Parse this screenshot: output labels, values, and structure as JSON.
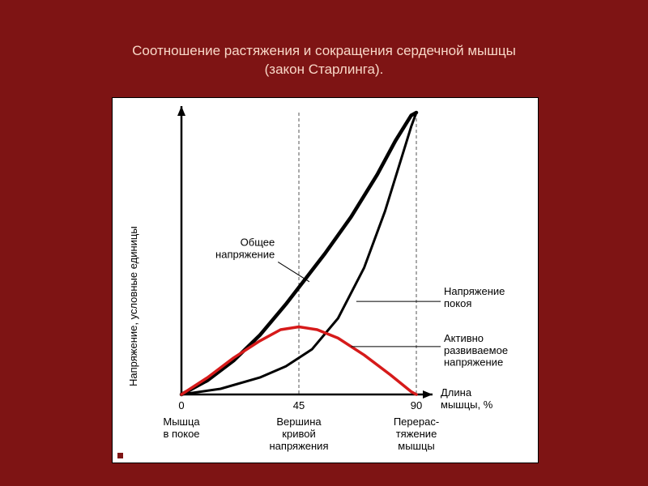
{
  "slide": {
    "title_line1": "Соотношение растяжения и сокращения сердечной мышцы",
    "title_line2": "(закон Старлинга).",
    "title_color": "#f8d7c7",
    "title_fontsize": 17,
    "background_color": "#7e1414"
  },
  "chart": {
    "type": "line",
    "background_color": "#ffffff",
    "axis_color": "#000000",
    "axis_line_width": 2.5,
    "grid_dash": "4,3",
    "grid_color": "#555555",
    "xlim": [
      0,
      90
    ],
    "ylim": [
      0,
      100
    ],
    "xticks": [
      0,
      45,
      90
    ],
    "x_tick_labels": [
      "0",
      "45",
      "90"
    ],
    "x_axis_label": "Длина\nмышцы, %",
    "y_axis_label": "Напряжение, условные единицы",
    "x_category_labels": [
      "Мышца\nв покое",
      "Вершина\nкривой\nнапряжения",
      "Перерас-\nтяжение\nмышцы"
    ],
    "series": {
      "total_tension": {
        "label": "Общее\nнапряжение",
        "color": "#000000",
        "line_width": 4.5,
        "points": [
          {
            "x": 0,
            "y": 0
          },
          {
            "x": 10,
            "y": 5
          },
          {
            "x": 20,
            "y": 12
          },
          {
            "x": 30,
            "y": 21
          },
          {
            "x": 40,
            "y": 32
          },
          {
            "x": 45,
            "y": 38
          },
          {
            "x": 55,
            "y": 50
          },
          {
            "x": 65,
            "y": 63
          },
          {
            "x": 75,
            "y": 78
          },
          {
            "x": 82,
            "y": 90
          },
          {
            "x": 88,
            "y": 99
          },
          {
            "x": 90,
            "y": 100
          }
        ]
      },
      "resting_tension": {
        "label": "Напряжение\nпокоя",
        "color": "#000000",
        "line_width": 3,
        "points": [
          {
            "x": 0,
            "y": 0
          },
          {
            "x": 15,
            "y": 2
          },
          {
            "x": 30,
            "y": 6
          },
          {
            "x": 40,
            "y": 10
          },
          {
            "x": 50,
            "y": 16
          },
          {
            "x": 60,
            "y": 27
          },
          {
            "x": 70,
            "y": 45
          },
          {
            "x": 78,
            "y": 65
          },
          {
            "x": 84,
            "y": 83
          },
          {
            "x": 88,
            "y": 95
          },
          {
            "x": 90,
            "y": 100
          }
        ]
      },
      "active_tension": {
        "label": "Активно\nразвиваемое\nнапряжение",
        "color": "#d61a1a",
        "line_width": 3.5,
        "points": [
          {
            "x": 0,
            "y": 0
          },
          {
            "x": 10,
            "y": 6
          },
          {
            "x": 20,
            "y": 13
          },
          {
            "x": 30,
            "y": 19
          },
          {
            "x": 38,
            "y": 23
          },
          {
            "x": 45,
            "y": 24
          },
          {
            "x": 52,
            "y": 23
          },
          {
            "x": 60,
            "y": 20
          },
          {
            "x": 70,
            "y": 14
          },
          {
            "x": 80,
            "y": 7
          },
          {
            "x": 88,
            "y": 1
          },
          {
            "x": 90,
            "y": 0
          }
        ]
      }
    },
    "label_font": "Verdana, sans-serif",
    "label_fontsize_axis": 13,
    "label_fontsize_series": 13,
    "label_fontsize_ticks": 13,
    "label_color": "#000000",
    "bullet_color": "#7e1414"
  }
}
